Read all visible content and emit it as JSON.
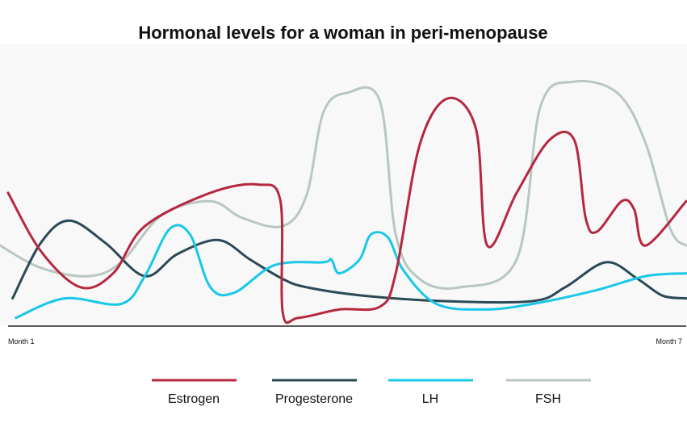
{
  "chart_data": {
    "type": "line",
    "title": "Hormonal levels for a woman in peri-menopause",
    "xlabel": "",
    "ylabel": "",
    "x_tick_labels": [
      {
        "x": 1,
        "label": "Month 1"
      },
      {
        "x": 7,
        "label": "Month 7"
      }
    ],
    "xlim": [
      1,
      7
    ],
    "ylim": [
      0,
      100
    ],
    "grid": false,
    "legend_position": "bottom",
    "series": [
      {
        "name": "Estrogen",
        "color": "#b5283f",
        "points": [
          [
            1.0,
            48
          ],
          [
            1.29,
            27
          ],
          [
            1.64,
            14
          ],
          [
            1.93,
            19
          ],
          [
            2.21,
            36
          ],
          [
            2.79,
            48
          ],
          [
            3.21,
            51
          ],
          [
            3.41,
            45
          ],
          [
            3.43,
            5
          ],
          [
            3.57,
            3
          ],
          [
            3.93,
            6
          ],
          [
            4.29,
            7
          ],
          [
            4.43,
            19
          ],
          [
            4.64,
            65
          ],
          [
            4.89,
            82
          ],
          [
            5.14,
            71
          ],
          [
            5.24,
            29
          ],
          [
            5.5,
            48
          ],
          [
            5.79,
            67
          ],
          [
            6.01,
            67
          ],
          [
            6.11,
            39
          ],
          [
            6.21,
            34
          ],
          [
            6.43,
            45
          ],
          [
            6.54,
            42
          ],
          [
            6.64,
            29
          ],
          [
            7.0,
            45
          ]
        ]
      },
      {
        "name": "Progesterone",
        "color": "#2b4a55",
        "points": [
          [
            1.04,
            10
          ],
          [
            1.29,
            30
          ],
          [
            1.54,
            38
          ],
          [
            1.86,
            30
          ],
          [
            2.21,
            18
          ],
          [
            2.5,
            26
          ],
          [
            2.86,
            31
          ],
          [
            3.14,
            24
          ],
          [
            3.43,
            17
          ],
          [
            3.64,
            14
          ],
          [
            4.14,
            11
          ],
          [
            4.86,
            9
          ],
          [
            5.64,
            9
          ],
          [
            5.93,
            14
          ],
          [
            6.29,
            23
          ],
          [
            6.57,
            17
          ],
          [
            6.79,
            11
          ],
          [
            7.0,
            10
          ]
        ]
      },
      {
        "name": "LH",
        "color": "#19c8e8",
        "points": [
          [
            1.07,
            3
          ],
          [
            1.5,
            10
          ],
          [
            2.0,
            8
          ],
          [
            2.21,
            18
          ],
          [
            2.43,
            35
          ],
          [
            2.61,
            33
          ],
          [
            2.79,
            14
          ],
          [
            3.0,
            12
          ],
          [
            3.36,
            22
          ],
          [
            3.79,
            23
          ],
          [
            3.86,
            24
          ],
          [
            3.93,
            19
          ],
          [
            4.11,
            24
          ],
          [
            4.21,
            33
          ],
          [
            4.36,
            32
          ],
          [
            4.5,
            20
          ],
          [
            4.79,
            8
          ],
          [
            5.21,
            6
          ],
          [
            5.64,
            8
          ],
          [
            6.21,
            13
          ],
          [
            6.64,
            18
          ],
          [
            7.0,
            19
          ]
        ]
      },
      {
        "name": "FSH",
        "color": "#b8c7c0",
        "points": [
          [
            0.93,
            29
          ],
          [
            1.29,
            21
          ],
          [
            1.71,
            18
          ],
          [
            2.0,
            23
          ],
          [
            2.36,
            40
          ],
          [
            2.79,
            45
          ],
          [
            3.07,
            39
          ],
          [
            3.43,
            36
          ],
          [
            3.64,
            47
          ],
          [
            3.79,
            77
          ],
          [
            4.0,
            84
          ],
          [
            4.29,
            81
          ],
          [
            4.43,
            33
          ],
          [
            4.64,
            17
          ],
          [
            5.0,
            14
          ],
          [
            5.5,
            24
          ],
          [
            5.71,
            79
          ],
          [
            6.0,
            88
          ],
          [
            6.39,
            84
          ],
          [
            6.64,
            66
          ],
          [
            6.86,
            35
          ],
          [
            7.0,
            29
          ]
        ]
      }
    ]
  }
}
